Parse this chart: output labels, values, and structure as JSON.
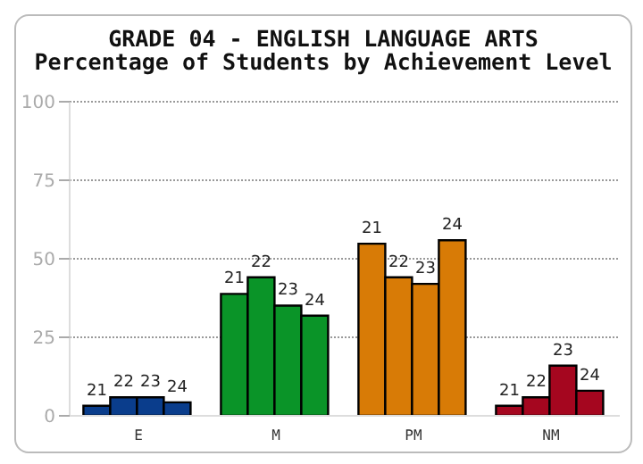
{
  "chart_data": {
    "type": "bar",
    "title": "GRADE 04 - ENGLISH LANGUAGE ARTS",
    "subtitle": "Percentage of Students by Achievement Level",
    "categories": [
      "E",
      "M",
      "PM",
      "NM"
    ],
    "series": [
      {
        "name": "21",
        "colors": [
          "#0a3d8c",
          "#0a9428",
          "#d87b06",
          "#a5061f"
        ],
        "values": [
          3.2,
          38.8,
          54.8,
          3.2
        ]
      },
      {
        "name": "22",
        "colors": [
          "#0a3d8c",
          "#0a9428",
          "#d87b06",
          "#a5061f"
        ],
        "values": [
          5.9,
          44.1,
          44.1,
          5.9
        ]
      },
      {
        "name": "23",
        "colors": [
          "#0a3d8c",
          "#0a9428",
          "#d87b06",
          "#a5061f"
        ],
        "values": [
          5.9,
          35.1,
          42.0,
          16.0
        ]
      },
      {
        "name": "24",
        "colors": [
          "#0a3d8c",
          "#0a9428",
          "#d87b06",
          "#a5061f"
        ],
        "values": [
          4.3,
          31.9,
          55.9,
          8.0
        ]
      }
    ],
    "ylim": [
      0,
      100
    ],
    "yticks": [
      0,
      25,
      50,
      75,
      100
    ],
    "grid": "y"
  }
}
